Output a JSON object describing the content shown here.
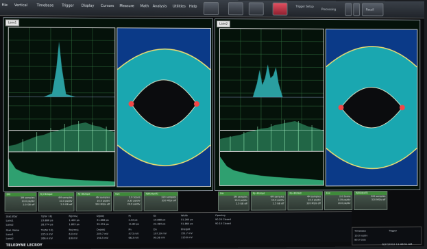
{
  "menu": [
    "File",
    "Vertical",
    "Timebase",
    "Trigger",
    "Display",
    "Cursors",
    "Measure",
    "Math",
    "Analysis",
    "Utilities",
    "Help"
  ],
  "toolbar": {
    "setup_label": "Trigger Setup",
    "processing_label": "Processing",
    "recall_label": "Recall"
  },
  "panels": [
    {
      "tab": "Lane1"
    },
    {
      "tab": "Lane2"
    }
  ],
  "descriptors_left": [
    {
      "head": "Dtt",
      "lines": [
        "3M samples",
        "10.0 ps/div",
        "2.5 GB off"
      ]
    },
    {
      "head": "Rj+BUdpd",
      "lines": [
        "4M samples",
        "10.0 ps/div",
        "2.5 GB off"
      ]
    },
    {
      "head": "Rj+BUdpd",
      "lines": [
        "4M samples",
        "10.0 ps/div",
        "320 MS/s off"
      ]
    },
    {
      "head": "Eye",
      "lines": [
        "2.0 Scans",
        "3.35 ps/div",
        "20.0 ps/div"
      ]
    },
    {
      "head": "RJBUdpdTJ",
      "lines": [
        "320 samples",
        "320 MS/s off",
        ""
      ]
    }
  ],
  "descriptors_right": [
    {
      "head": "Dtt",
      "lines": [
        "3M samples",
        "10.0 ps/div",
        "2.5 GB off"
      ]
    },
    {
      "head": "Rj+BUdpd",
      "lines": [
        "4M samples",
        "10.0 ps/div",
        "2.5 GB off"
      ]
    },
    {
      "head": "Rj+BUdpd",
      "lines": [
        "4M samples",
        "10.0 ps/div",
        "320 MS/s off"
      ]
    },
    {
      "head": "Eye",
      "lines": [
        "2.0 Scans",
        "3.35 ps/div",
        "20.0 ps/div"
      ]
    },
    {
      "head": "RJBUdpdTJ",
      "lines": [
        "320 samples",
        "320 MS/s off",
        ""
      ]
    }
  ],
  "measure": {
    "rows": [
      [
        "Stat Jitter",
        "Tj(for 1E)",
        "Rj(rms)",
        "Dj(dd)",
        "Pj",
        "Dj",
        "Width",
        "Opening"
      ],
      [
        "Lane1",
        "23.886 ps",
        "1.400 ps",
        "31.668 ps",
        "2.32 ps",
        "10.888 ps",
        "51.260 ps",
        "90.20 Closed"
      ],
      [
        "Lane2",
        "28.774 ps",
        "1.803 ps",
        "39.351 ps",
        "11.80 ps",
        "22.484 ps",
        "51.864 ps",
        "90.10 Closed"
      ],
      [
        "Stat. Noise",
        "Tn(for 1E)",
        "Rn(rms)",
        "Dn(dd)",
        "Pn",
        "Dn",
        "Eheight",
        "Opening"
      ],
      [
        "Lane1",
        "225.9 mV",
        "6.0 mV",
        "209.7 mV",
        "47.5 mV",
        "107.39 mV",
        "151.7 mV",
        ""
      ],
      [
        "Lane2",
        "266.4 mV",
        "8.6 mV",
        "194.5 mV",
        "66.3 mV",
        "99.56 mV",
        "115.6 mV",
        ""
      ]
    ]
  },
  "status": {
    "timebase": "Timebase",
    "trigger": "Trigger",
    "line1": "10.0 ns/div",
    "line2": "80.0 GS/s"
  },
  "brand": "TELEDYNE LECROY",
  "datetime": "6/27/2012 11:48:51 AM"
}
